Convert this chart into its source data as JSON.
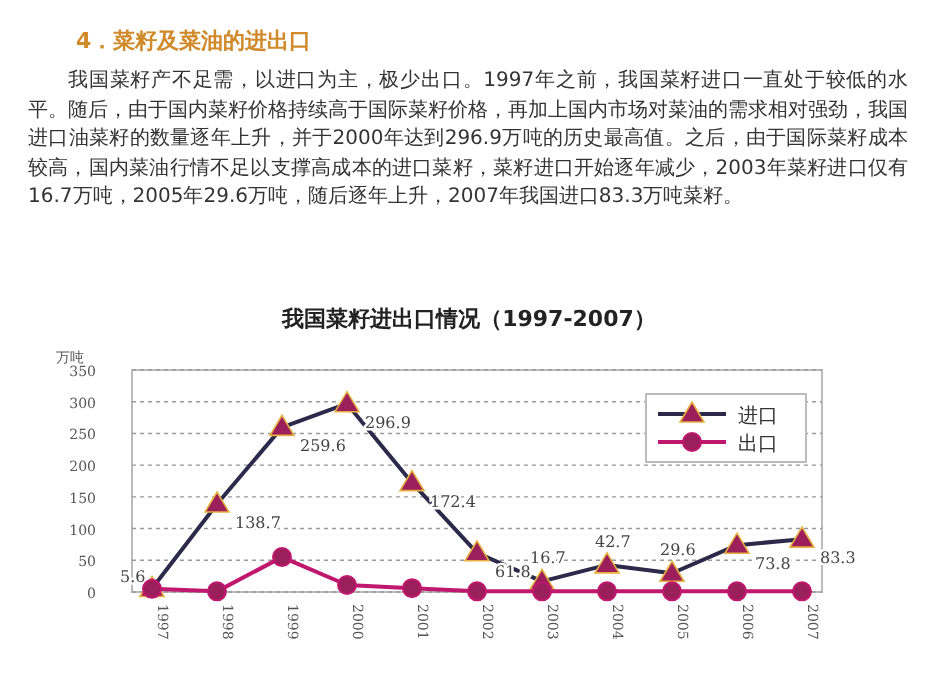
{
  "chart_data": {
    "type": "line",
    "title": "我国菜籽进出口情况（1997-2007）",
    "ylabel": "万吨",
    "annotations": [
      "4．菜籽及菜油的进出口",
      "我国菜籽产不足需，以进口为主，极少出口。1997年之前，我国菜籽进口一直处于较低的水平。随后，由于国内菜籽价格持续高于国际菜籽价格，再加上国内市场对菜油的需求相对强劲，我国进口油菜籽的数量逐年上升，并于2000年达到296.9万吨的历史最高值。之后，由于国际菜籽成本较高，国内菜油行情不足以支撑高成本的进口菜籽，菜籽进口开始逐年减少，2003年菜籽进口仅有16.7万吨，2005年29.6万吨，随后逐年上升，2007年我国进口83.3万吨菜籽。"
    ],
    "categories": [
      "1997",
      "1998",
      "1999",
      "2000",
      "2001",
      "2002",
      "2003",
      "2004",
      "2005",
      "2006",
      "2007"
    ],
    "series": [
      {
        "name": "进口",
        "color": "#2b2a4a",
        "marker": "triangle",
        "values": [
          5.6,
          138.7,
          259.6,
          296.9,
          172.4,
          61.8,
          16.7,
          42.7,
          29.6,
          73.8,
          83.3
        ],
        "value_labels": [
          "5.6",
          "138.7",
          "259.6",
          "296.9",
          "172.4",
          "61.8",
          "16.7",
          "42.7",
          "29.6",
          "73.8",
          "83.3"
        ]
      },
      {
        "name": "出口",
        "color": "#c0186e",
        "marker": "circle",
        "values": [
          5,
          1,
          55,
          11,
          6,
          1,
          1,
          1,
          1,
          1,
          1
        ]
      }
    ],
    "ylim": [
      0,
      350
    ],
    "yticks": [
      0,
      50,
      100,
      150,
      200,
      250,
      300,
      350
    ],
    "grid": "y",
    "legend": "top right"
  }
}
